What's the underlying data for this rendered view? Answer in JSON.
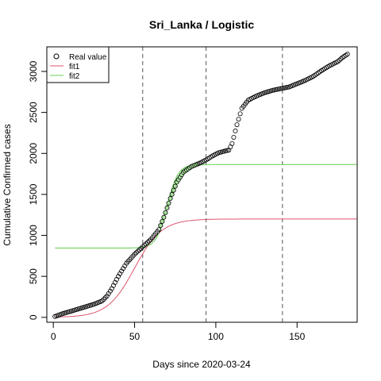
{
  "chart_data": {
    "type": "scatter",
    "title": "Sri_Lanka / Logistic",
    "xlabel": "Days since 2020-03-24",
    "ylabel": "Cumulative Confirmed cases",
    "xlim": [
      -4,
      187
    ],
    "ylim": [
      -60,
      3300
    ],
    "xticks": [
      0,
      50,
      100,
      150
    ],
    "yticks": [
      0,
      500,
      1000,
      1500,
      2000,
      2500,
      3000
    ],
    "grid": false,
    "legend": {
      "position": "top-left",
      "entries": [
        "Real value",
        "fit1",
        "fit2"
      ]
    },
    "vlines": [
      55,
      94,
      141
    ],
    "colors": {
      "real": "#000000",
      "fit1": "#df536b",
      "fit2": "#61d04f",
      "vline": "#555555"
    },
    "real_anchor_points": [
      [
        1,
        10
      ],
      [
        5,
        40
      ],
      [
        10,
        70
      ],
      [
        15,
        100
      ],
      [
        20,
        130
      ],
      [
        25,
        160
      ],
      [
        30,
        200
      ],
      [
        33,
        260
      ],
      [
        36,
        350
      ],
      [
        40,
        500
      ],
      [
        45,
        660
      ],
      [
        50,
        770
      ],
      [
        55,
        860
      ],
      [
        60,
        950
      ],
      [
        65,
        1070
      ],
      [
        68,
        1220
      ],
      [
        72,
        1450
      ],
      [
        76,
        1650
      ],
      [
        80,
        1770
      ],
      [
        85,
        1840
      ],
      [
        90,
        1880
      ],
      [
        94,
        1920
      ],
      [
        98,
        1970
      ],
      [
        102,
        2010
      ],
      [
        106,
        2030
      ],
      [
        108,
        2040
      ],
      [
        110,
        2120
      ],
      [
        113,
        2350
      ],
      [
        116,
        2550
      ],
      [
        120,
        2650
      ],
      [
        125,
        2700
      ],
      [
        130,
        2740
      ],
      [
        135,
        2770
      ],
      [
        140,
        2790
      ],
      [
        145,
        2810
      ],
      [
        150,
        2850
      ],
      [
        155,
        2890
      ],
      [
        160,
        2940
      ],
      [
        165,
        3010
      ],
      [
        170,
        3070
      ],
      [
        175,
        3120
      ],
      [
        178,
        3170
      ],
      [
        181,
        3210
      ]
    ],
    "fit1": {
      "range": [
        1,
        187
      ],
      "K": 1200,
      "r": 0.12,
      "t0": 50,
      "floor": 0
    },
    "fit2": {
      "range": [
        1,
        187
      ],
      "base": 845,
      "K": 1020,
      "r": 0.3,
      "t0": 70
    },
    "real_colored_range": [
      55,
      94
    ]
  }
}
